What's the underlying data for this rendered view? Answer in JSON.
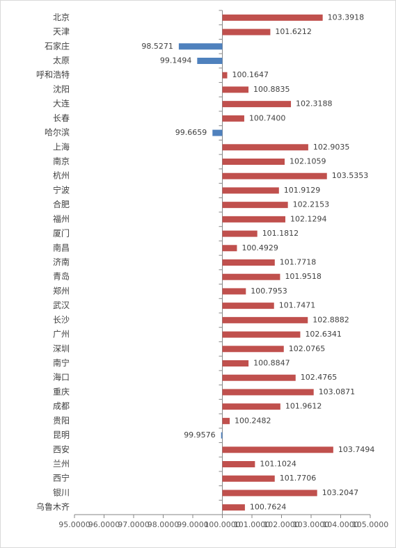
{
  "chart_data": {
    "type": "bar",
    "orientation": "horizontal",
    "categories": [
      "北京",
      "天津",
      "石家庄",
      "太原",
      "呼和浩特",
      "沈阳",
      "大连",
      "长春",
      "哈尔滨",
      "上海",
      "南京",
      "杭州",
      "宁波",
      "合肥",
      "福州",
      "厦门",
      "南昌",
      "济南",
      "青岛",
      "郑州",
      "武汉",
      "长沙",
      "广州",
      "深圳",
      "南宁",
      "海口",
      "重庆",
      "成都",
      "贵阳",
      "昆明",
      "西安",
      "兰州",
      "西宁",
      "银川",
      "乌鲁木齐"
    ],
    "values": [
      103.3918,
      101.6212,
      98.5271,
      99.1494,
      100.1647,
      100.8835,
      102.3188,
      100.74,
      99.6659,
      102.9035,
      102.1059,
      103.5353,
      101.9129,
      102.2153,
      102.1294,
      101.1812,
      100.4929,
      101.7718,
      101.9518,
      100.7953,
      101.7471,
      102.8882,
      102.6341,
      102.0765,
      100.8847,
      102.4765,
      103.0871,
      101.9612,
      100.2482,
      99.9576,
      103.7494,
      101.1024,
      101.7706,
      103.2047,
      100.7624
    ],
    "value_labels": [
      "103.3918",
      "101.6212",
      "98.5271",
      "99.1494",
      "100.1647",
      "100.8835",
      "102.3188",
      "100.7400",
      "99.6659",
      "102.9035",
      "102.1059",
      "103.5353",
      "101.9129",
      "102.2153",
      "102.1294",
      "101.1812",
      "100.4929",
      "101.7718",
      "101.9518",
      "100.7953",
      "101.7471",
      "102.8882",
      "102.6341",
      "102.0765",
      "100.8847",
      "102.4765",
      "103.0871",
      "101.9612",
      "100.2482",
      "99.9576",
      "103.7494",
      "101.1024",
      "101.7706",
      "103.2047",
      "100.7624"
    ],
    "color": "#c0504d",
    "negative_color": "#4f81bd",
    "axis_crosses": 100,
    "xlim": [
      95,
      105
    ],
    "xticks": [
      {
        "value": 95,
        "label": "95.0000"
      },
      {
        "value": 96,
        "label": "96.0000"
      },
      {
        "value": 97,
        "label": "97.0000"
      },
      {
        "value": 98,
        "label": "98.0000"
      },
      {
        "value": 99,
        "label": "99.0000"
      },
      {
        "value": 100,
        "label": "100.0000"
      },
      {
        "value": 101,
        "label": "101.0000"
      },
      {
        "value": 102,
        "label": "102.0000"
      },
      {
        "value": 103,
        "label": "103.0000"
      },
      {
        "value": 104,
        "label": "104.0000"
      },
      {
        "value": 105,
        "label": "105.0000"
      }
    ]
  }
}
